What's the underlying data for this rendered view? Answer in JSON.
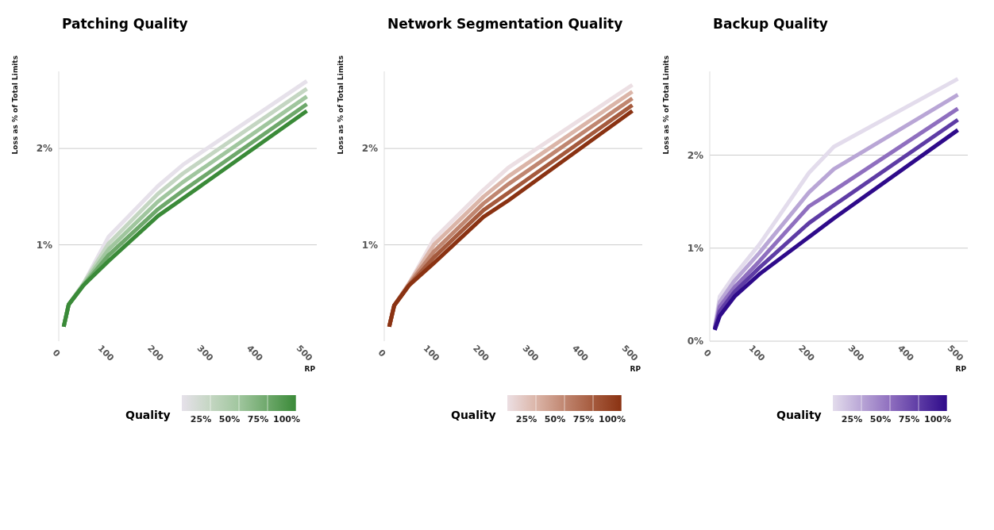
{
  "chart_data": [
    {
      "type": "line",
      "title": "Patching Quality",
      "xlabel": "RP",
      "ylabel": "Loss as % of Total Limits",
      "clabel": "Quality",
      "x": [
        10,
        20,
        50,
        100,
        200,
        250,
        500
      ],
      "series": [
        {
          "color": "#e6e1ea",
          "values": [
            0.15,
            0.38,
            0.6,
            1.08,
            1.61,
            1.83,
            2.7
          ]
        },
        {
          "color": "#c4d6c2",
          "values": [
            0.15,
            0.38,
            0.6,
            1.01,
            1.53,
            1.74,
            2.62
          ]
        },
        {
          "color": "#a0c69e",
          "values": [
            0.15,
            0.38,
            0.59,
            0.95,
            1.45,
            1.65,
            2.54
          ]
        },
        {
          "color": "#6ea86b",
          "values": [
            0.15,
            0.38,
            0.58,
            0.89,
            1.37,
            1.56,
            2.46
          ]
        },
        {
          "color": "#3a8a38",
          "values": [
            0.15,
            0.38,
            0.58,
            0.83,
            1.3,
            1.48,
            2.39
          ]
        }
      ],
      "xlim": [
        0,
        520
      ],
      "xticks": [
        0,
        100,
        200,
        300,
        400,
        500
      ],
      "ylim": [
        0,
        2.8
      ],
      "yticks": [
        {
          "value": 1,
          "label": "1%"
        },
        {
          "value": 2,
          "label": "2%"
        }
      ],
      "clim": [
        0,
        100
      ],
      "cticks": [
        {
          "value": 25,
          "label": "25%"
        },
        {
          "value": 50,
          "label": "50%"
        },
        {
          "value": 75,
          "label": "75%"
        },
        {
          "value": 100,
          "label": "100%"
        }
      ],
      "grid": "y"
    },
    {
      "type": "line",
      "title": "Network Segmentation Quality",
      "xlabel": "RP",
      "ylabel": "Loss as % of Total Limits",
      "clabel": "Quality",
      "x": [
        10,
        20,
        50,
        100,
        200,
        250,
        500
      ],
      "series": [
        {
          "color": "#ecdfe3",
          "values": [
            0.15,
            0.37,
            0.6,
            1.06,
            1.57,
            1.8,
            2.66
          ]
        },
        {
          "color": "#dbb5a8",
          "values": [
            0.15,
            0.37,
            0.6,
            1.0,
            1.5,
            1.71,
            2.59
          ]
        },
        {
          "color": "#c08670",
          "values": [
            0.15,
            0.37,
            0.59,
            0.93,
            1.43,
            1.63,
            2.52
          ]
        },
        {
          "color": "#a55a3d",
          "values": [
            0.15,
            0.37,
            0.58,
            0.87,
            1.36,
            1.54,
            2.45
          ]
        },
        {
          "color": "#8a3212",
          "values": [
            0.15,
            0.37,
            0.58,
            0.81,
            1.29,
            1.46,
            2.39
          ]
        }
      ],
      "xlim": [
        0,
        520
      ],
      "xticks": [
        0,
        100,
        200,
        300,
        400,
        500
      ],
      "ylim": [
        0,
        2.8
      ],
      "yticks": [
        {
          "value": 1,
          "label": "1%"
        },
        {
          "value": 2,
          "label": "2%"
        }
      ],
      "clim": [
        0,
        100
      ],
      "cticks": [
        {
          "value": 25,
          "label": "25%"
        },
        {
          "value": 50,
          "label": "50%"
        },
        {
          "value": 75,
          "label": "75%"
        },
        {
          "value": 100,
          "label": "100%"
        }
      ],
      "grid": "y"
    },
    {
      "type": "line",
      "title": "Backup Quality",
      "xlabel": "RP",
      "ylabel": "Loss as % of Total Limits",
      "clabel": "Quality",
      "x": [
        10,
        20,
        50,
        100,
        200,
        250,
        500
      ],
      "series": [
        {
          "color": "#e3dcec",
          "values": [
            0.15,
            0.48,
            0.71,
            1.04,
            1.81,
            2.09,
            2.82
          ]
        },
        {
          "color": "#b9a6d6",
          "values": [
            0.14,
            0.42,
            0.65,
            0.95,
            1.6,
            1.85,
            2.65
          ]
        },
        {
          "color": "#8f6fbf",
          "values": [
            0.13,
            0.37,
            0.58,
            0.86,
            1.45,
            1.62,
            2.5
          ]
        },
        {
          "color": "#5e3ca5",
          "values": [
            0.13,
            0.32,
            0.53,
            0.79,
            1.27,
            1.46,
            2.38
          ]
        },
        {
          "color": "#2e0a8a",
          "values": [
            0.12,
            0.27,
            0.48,
            0.72,
            1.12,
            1.32,
            2.27
          ]
        }
      ],
      "xlim": [
        0,
        520
      ],
      "xticks": [
        0,
        100,
        200,
        300,
        400,
        500
      ],
      "ylim": [
        0,
        2.9
      ],
      "yticks": [
        {
          "value": 0,
          "label": "0%"
        },
        {
          "value": 1,
          "label": "1%"
        },
        {
          "value": 2,
          "label": "2%"
        }
      ],
      "clim": [
        0,
        100
      ],
      "cticks": [
        {
          "value": 25,
          "label": "25%"
        },
        {
          "value": 50,
          "label": "50%"
        },
        {
          "value": 75,
          "label": "75%"
        },
        {
          "value": 100,
          "label": "100%"
        }
      ],
      "grid": "y"
    }
  ]
}
